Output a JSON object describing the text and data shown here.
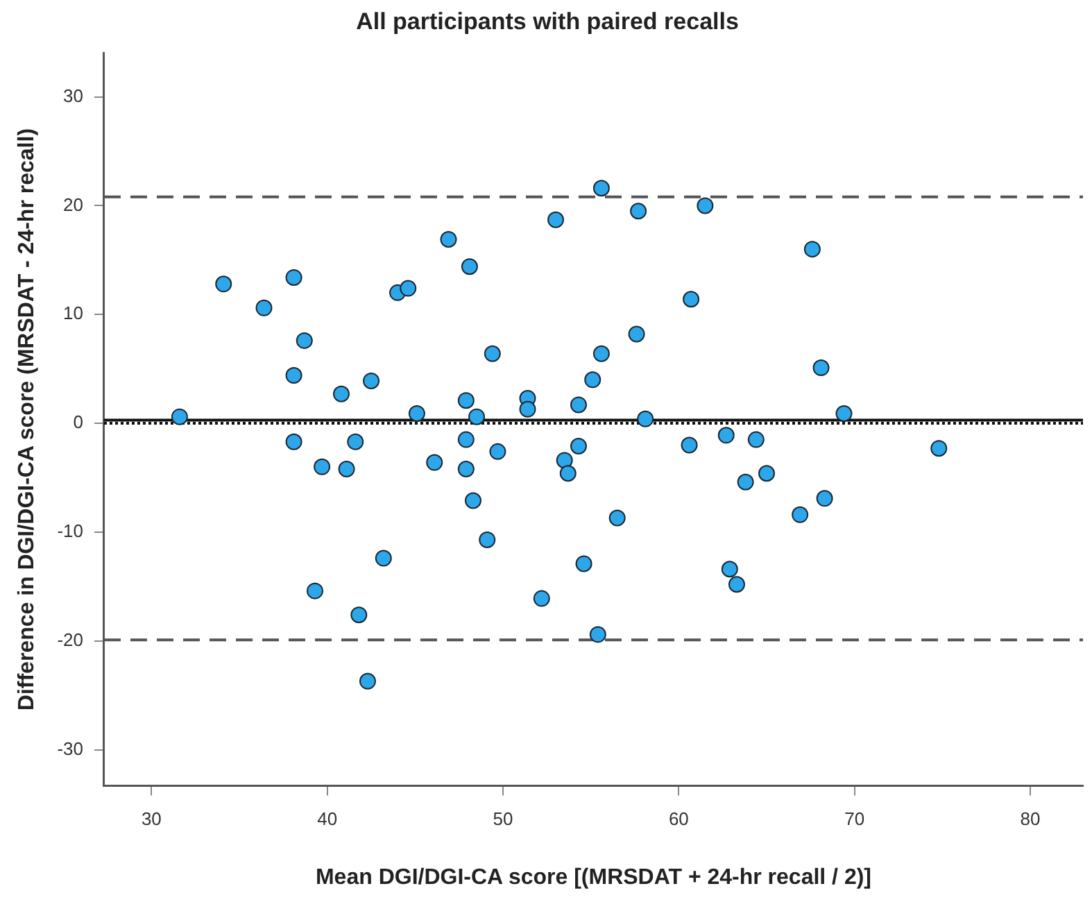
{
  "chart_data": {
    "type": "scatter",
    "title": "All participants with paired recalls",
    "xlabel": "Mean DGI/DGI-CA score [(MRSDAT + 24-hr recall / 2)]",
    "ylabel": "Difference in DGI/DGI-CA score (MRSDAT - 24-hr recall)",
    "series": [
      {
        "color": "#2ea6ea",
        "marker": "circle",
        "x": [
          31.6,
          34.1,
          36.4,
          38.1,
          38.7,
          38.1,
          38.1,
          40.8,
          39.7,
          41.1,
          41.6,
          42.5,
          44.0,
          44.6,
          45.1,
          46.1,
          46.9,
          48.1,
          47.9,
          48.5,
          47.9,
          47.9,
          49.4,
          49.7,
          51.4,
          51.4,
          53.0,
          54.3,
          54.3,
          53.5,
          53.7,
          55.6,
          57.7,
          61.5,
          67.6,
          60.7,
          57.6,
          55.6,
          55.1,
          68.1,
          58.1,
          69.4,
          60.6,
          62.7,
          64.4,
          74.8,
          63.8,
          65.0,
          48.3,
          49.1,
          43.2,
          39.3,
          41.8,
          42.3,
          52.2,
          54.6,
          56.5,
          55.4,
          62.9,
          63.3,
          66.9,
          68.3
        ],
        "values": [
          0.6,
          12.8,
          10.6,
          13.4,
          7.6,
          4.4,
          -1.7,
          2.7,
          -4.0,
          -4.2,
          -1.7,
          3.9,
          12.0,
          12.4,
          0.9,
          -3.6,
          16.9,
          14.4,
          2.1,
          0.6,
          -1.5,
          -4.2,
          6.4,
          -2.6,
          2.3,
          1.3,
          18.7,
          1.7,
          -2.1,
          -3.4,
          -4.6,
          21.6,
          19.5,
          20.0,
          16.0,
          11.4,
          8.2,
          6.4,
          4.0,
          5.1,
          0.4,
          0.9,
          -2.0,
          -1.1,
          -1.5,
          -2.3,
          -5.4,
          -4.6,
          -7.1,
          -10.7,
          -12.4,
          -15.4,
          -17.6,
          -23.7,
          -16.1,
          -12.9,
          -8.7,
          -19.4,
          -13.4,
          -14.8,
          -8.4,
          -6.9
        ]
      }
    ],
    "xlim": [
      27.3,
      83
    ],
    "xticks": [
      30,
      40,
      50,
      60,
      70,
      80
    ],
    "ylim": [
      -33.3,
      34
    ],
    "yticks": [
      -30,
      -20,
      -10,
      0,
      10,
      20,
      30
    ],
    "grid": false,
    "legend": false,
    "ref_lines": [
      {
        "axis": "y",
        "value": 20.8,
        "color": "#555555",
        "line_style": "dashed"
      },
      {
        "axis": "y",
        "value": -19.9,
        "color": "#555555",
        "line_style": "dashed"
      },
      {
        "axis": "y",
        "value": 0.3,
        "color": "#111111",
        "line_style": "solid"
      },
      {
        "axis": "y",
        "value": 0,
        "color": "#111111",
        "line_style": "dotted"
      }
    ]
  }
}
